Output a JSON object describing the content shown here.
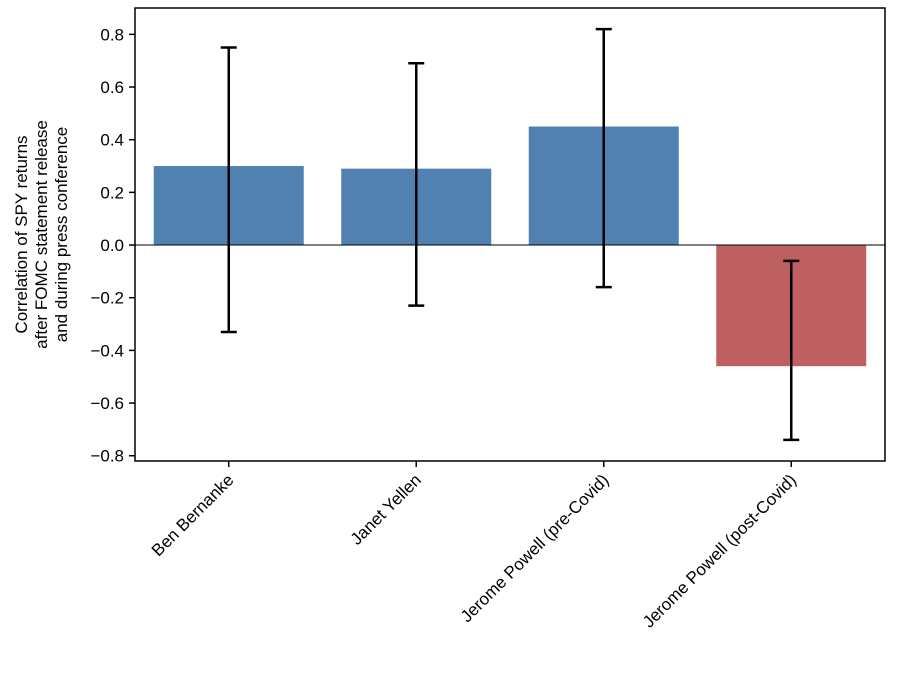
{
  "chart_data": {
    "type": "bar",
    "categories": [
      "Ben Bernanke",
      "Janet Yellen",
      "Jerome Powell (pre-Covid)",
      "Jerome Powell (post-Covid)"
    ],
    "values": [
      0.3,
      0.29,
      0.45,
      -0.46
    ],
    "error_low": [
      -0.33,
      -0.23,
      -0.16,
      -0.74
    ],
    "error_high": [
      0.75,
      0.69,
      0.82,
      -0.06
    ],
    "bar_colors": [
      "#5181b0",
      "#5181b0",
      "#5181b0",
      "#be605f"
    ],
    "ylabel_lines": [
      "Correlation of SPY returns",
      "after FOMC statement release",
      "and during press conference"
    ],
    "xlabel": "",
    "title": "",
    "ylim": [
      -0.82,
      0.9
    ],
    "yticks": [
      -0.8,
      -0.6,
      -0.4,
      -0.2,
      0.0,
      0.2,
      0.4,
      0.6,
      0.8
    ],
    "ytick_labels": [
      "−0.8",
      "−0.6",
      "−0.4",
      "−0.2",
      "0.0",
      "0.2",
      "0.4",
      "0.6",
      "0.8"
    ],
    "zero_line": true,
    "grid": false,
    "legend": "none"
  }
}
